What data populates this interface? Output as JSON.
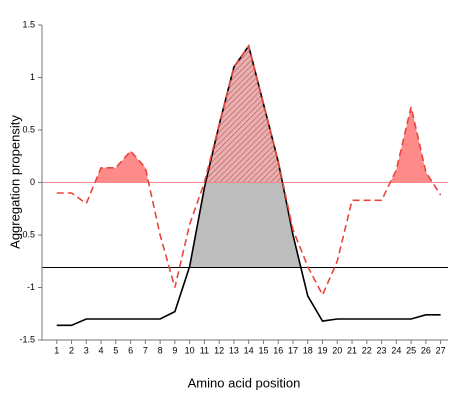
{
  "chart_data": {
    "type": "line",
    "xlabel": "Amino acid position",
    "ylabel": "Aggregation propensity",
    "x": [
      1,
      2,
      3,
      4,
      5,
      6,
      7,
      8,
      9,
      10,
      11,
      12,
      13,
      14,
      15,
      16,
      17,
      18,
      19,
      20,
      21,
      22,
      23,
      24,
      25,
      26,
      27
    ],
    "xlim": [
      0,
      27.5
    ],
    "xticks": [
      1,
      2,
      3,
      4,
      5,
      6,
      7,
      8,
      9,
      10,
      11,
      12,
      13,
      14,
      15,
      16,
      17,
      18,
      19,
      20,
      21,
      22,
      23,
      24,
      25,
      26,
      27
    ],
    "ylim": [
      -1.5,
      1.5
    ],
    "yticks": [
      -1.5,
      -1,
      -0.5,
      0,
      0.5,
      1,
      1.5
    ],
    "series": [
      {
        "color": "#e8463c",
        "dashed": true,
        "fill": "#ff8a8a",
        "threshold": 0,
        "values": [
          -0.1,
          -0.1,
          -0.2,
          0.14,
          0.14,
          0.3,
          0.14,
          -0.5,
          -1.0,
          -0.4,
          0.0,
          0.55,
          1.1,
          1.3,
          0.75,
          0.2,
          -0.45,
          -0.8,
          -1.07,
          -0.75,
          -0.17,
          -0.17,
          -0.17,
          0.12,
          0.72,
          0.1,
          -0.12
        ]
      },
      {
        "color": "#000000",
        "dashed": false,
        "fill": "#bdbdbd",
        "threshold": -0.81,
        "values": [
          -1.36,
          -1.36,
          -1.3,
          -1.3,
          -1.3,
          -1.3,
          -1.3,
          -1.3,
          -1.23,
          -0.8,
          -0.05,
          0.55,
          1.1,
          1.3,
          0.75,
          0.2,
          -0.5,
          -1.08,
          -1.32,
          -1.3,
          -1.3,
          -1.3,
          -1.3,
          -1.3,
          -1.3,
          -1.26,
          -1.26
        ]
      }
    ]
  }
}
